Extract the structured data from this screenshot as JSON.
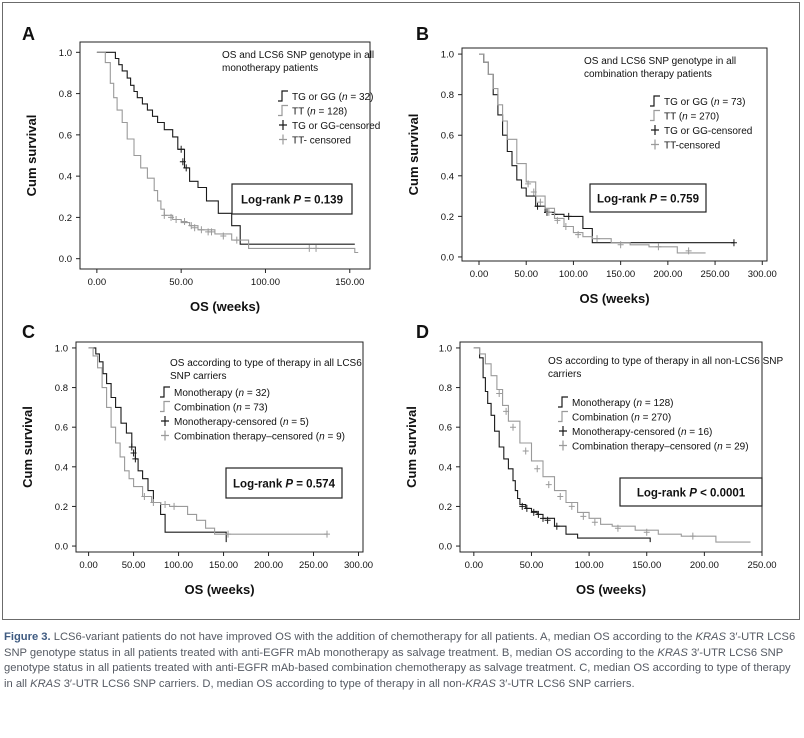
{
  "figure": {
    "axis_xlabel": "OS (weeks)",
    "axis_ylabel": "Cum survival",
    "caption": {
      "label": "Figure 3.",
      "text_html": "LCS6-variant patients do not have improved OS with the addition of chemotherapy for all patients. A, median OS according to the <i>KRAS</i> 3′-UTR LCS6 SNP genotype status in all patients treated with anti-EGFR mAb monotherapy as salvage treatment. B, median OS according to the <i>KRAS</i> 3′-UTR LCS6 SNP genotype status in all patients treated with anti-EGFR mAb-based combination chemotherapy as salvage treatment. C, median OS according to type of therapy in all <i>KRAS</i> 3′-UTR LCS6 SNP carriers. D, median OS according to type of therapy in all non-<i>KRAS</i> 3′-UTR LCS6 SNP carriers."
    }
  },
  "colors": {
    "series_dark": "#1a1a1a",
    "series_light": "#9a9a9a",
    "text": "#111111",
    "caption": "#555a63"
  },
  "chart_data": [
    {
      "panel": "A",
      "type": "line",
      "subtype": "kaplan-meier",
      "title": "OS and LCS6 SNP genotype in all monotherapy patients",
      "xlabel": "OS (weeks)",
      "ylabel": "Cum survival",
      "xlim": [
        -10,
        162
      ],
      "ylim": [
        -0.05,
        1.05
      ],
      "xticks": [
        0,
        50,
        100,
        150
      ],
      "xtick_labels": [
        "0.00",
        "50.00",
        "100.00",
        "150.00"
      ],
      "yticks": [
        0,
        0.2,
        0.4,
        0.6,
        0.8,
        1.0
      ],
      "ytick_labels": [
        "0.0",
        "0.2",
        "0.4",
        "0.6",
        "0.8",
        "1.0"
      ],
      "annotation": "Log-rank P = 0.139",
      "legend": {
        "position": "top-right",
        "entries": [
          "TG or GG (n = 32)",
          "TT (n = 128)",
          "TG or GG-censored",
          "TT- censored"
        ]
      },
      "series": [
        {
          "name": "TG or GG (n = 32)",
          "style": "dark",
          "x": [
            0,
            8,
            11,
            13,
            15,
            18,
            20,
            22,
            24,
            27,
            30,
            33,
            36,
            40,
            45,
            48,
            52,
            55,
            60,
            65,
            72,
            80,
            85,
            153
          ],
          "y": [
            1.0,
            1.0,
            0.97,
            0.94,
            0.91,
            0.875,
            0.84,
            0.81,
            0.78,
            0.75,
            0.72,
            0.69,
            0.66,
            0.625,
            0.59,
            0.53,
            0.44,
            0.375,
            0.345,
            0.28,
            0.22,
            0.16,
            0.07,
            0.07
          ],
          "censored": [
            [
              50,
              0.53
            ],
            [
              51,
              0.47
            ],
            [
              53,
              0.44
            ]
          ]
        },
        {
          "name": "TT (n = 128)",
          "style": "light",
          "x": [
            0,
            5,
            8,
            10,
            12,
            15,
            18,
            22,
            26,
            30,
            34,
            36,
            38,
            40,
            45,
            50,
            55,
            60,
            70,
            80,
            90,
            150,
            153,
            155
          ],
          "y": [
            1.0,
            0.95,
            0.85,
            0.78,
            0.72,
            0.66,
            0.58,
            0.5,
            0.44,
            0.39,
            0.33,
            0.28,
            0.24,
            0.21,
            0.19,
            0.175,
            0.16,
            0.14,
            0.12,
            0.09,
            0.05,
            0.05,
            0.03,
            0.03
          ],
          "censored": [
            [
              40,
              0.21
            ],
            [
              44,
              0.2
            ],
            [
              47,
              0.19
            ],
            [
              52,
              0.18
            ],
            [
              56,
              0.16
            ],
            [
              58,
              0.15
            ],
            [
              62,
              0.14
            ],
            [
              66,
              0.13
            ],
            [
              68,
              0.13
            ],
            [
              75,
              0.11
            ],
            [
              83,
              0.09
            ],
            [
              126,
              0.05
            ],
            [
              130,
              0.05
            ]
          ]
        }
      ]
    },
    {
      "panel": "B",
      "type": "line",
      "subtype": "kaplan-meier",
      "title": "OS and LCS6 SNP genotype in all combination therapy patients",
      "xlabel": "OS (weeks)",
      "ylabel": "Cum survival",
      "xlim": [
        -18,
        305
      ],
      "ylim": [
        -0.02,
        1.03
      ],
      "xticks": [
        0,
        50,
        100,
        150,
        200,
        250,
        300
      ],
      "xtick_labels": [
        "0.00",
        "50.00",
        "100.00",
        "150.00",
        "200.00",
        "250.00",
        "300.00"
      ],
      "yticks": [
        0,
        0.2,
        0.4,
        0.6,
        0.8,
        1.0
      ],
      "ytick_labels": [
        "0.0",
        "0.2",
        "0.4",
        "0.6",
        "0.8",
        "1.0"
      ],
      "annotation": "Log-rank P = 0.759",
      "legend": {
        "position": "top-right",
        "entries": [
          "TG or GG (n = 73)",
          "TT (n = 270)",
          "TG or GG-censored",
          "TT-censored"
        ]
      },
      "series": [
        {
          "name": "TG or GG (n = 73)",
          "style": "dark",
          "x": [
            0,
            5,
            10,
            15,
            20,
            25,
            30,
            35,
            40,
            45,
            50,
            60,
            70,
            80,
            90,
            100,
            110,
            120,
            140,
            165,
            270
          ],
          "y": [
            1.0,
            0.96,
            0.9,
            0.8,
            0.7,
            0.6,
            0.52,
            0.45,
            0.38,
            0.34,
            0.3,
            0.25,
            0.22,
            0.21,
            0.2,
            0.2,
            0.14,
            0.07,
            0.07,
            0.07,
            0.07
          ],
          "censored": [
            [
              62,
              0.25
            ],
            [
              72,
              0.22
            ],
            [
              80,
              0.21
            ],
            [
              95,
              0.2
            ],
            [
              270,
              0.07
            ]
          ]
        },
        {
          "name": "TT (n = 270)",
          "style": "light",
          "x": [
            0,
            5,
            10,
            15,
            20,
            25,
            30,
            40,
            50,
            60,
            70,
            80,
            90,
            100,
            110,
            120,
            140,
            160,
            180,
            200,
            210,
            240
          ],
          "y": [
            1.0,
            0.96,
            0.9,
            0.83,
            0.75,
            0.67,
            0.58,
            0.46,
            0.37,
            0.3,
            0.24,
            0.19,
            0.15,
            0.12,
            0.1,
            0.09,
            0.07,
            0.06,
            0.05,
            0.05,
            0.02,
            0.02
          ],
          "censored": [
            [
              52,
              0.36
            ],
            [
              58,
              0.32
            ],
            [
              65,
              0.27
            ],
            [
              74,
              0.22
            ],
            [
              83,
              0.18
            ],
            [
              92,
              0.15
            ],
            [
              105,
              0.11
            ],
            [
              125,
              0.09
            ],
            [
              150,
              0.06
            ],
            [
              190,
              0.05
            ],
            [
              222,
              0.03
            ]
          ]
        }
      ]
    },
    {
      "panel": "C",
      "type": "line",
      "subtype": "kaplan-meier",
      "title": "OS according to type of therapy in all LCS6 SNP carriers",
      "xlabel": "OS (weeks)",
      "ylabel": "Cum survival",
      "xlim": [
        -14,
        305
      ],
      "ylim": [
        -0.03,
        1.03
      ],
      "xticks": [
        0,
        50,
        100,
        150,
        200,
        250,
        300
      ],
      "xtick_labels": [
        "0.00",
        "50.00",
        "100.00",
        "150.00",
        "200.00",
        "250.00",
        "300.00"
      ],
      "yticks": [
        0,
        0.2,
        0.4,
        0.6,
        0.8,
        1.0
      ],
      "ytick_labels": [
        "0.0",
        "0.2",
        "0.4",
        "0.6",
        "0.8",
        "1.0"
      ],
      "annotation": "Log-rank P = 0.574",
      "legend": {
        "position": "top-right",
        "entries": [
          "Monotherapy (n = 32)",
          "Combination (n = 73)",
          "Monotherapy-censored (n = 5)",
          "Combination therapy–censored (n = 9)"
        ]
      },
      "series": [
        {
          "name": "Monotherapy (n = 32)",
          "style": "dark",
          "x": [
            0,
            8,
            12,
            16,
            20,
            25,
            30,
            36,
            42,
            48,
            52,
            55,
            60,
            66,
            72,
            80,
            85,
            150,
            153
          ],
          "y": [
            1.0,
            0.97,
            0.93,
            0.87,
            0.82,
            0.75,
            0.7,
            0.62,
            0.57,
            0.5,
            0.44,
            0.38,
            0.34,
            0.28,
            0.22,
            0.16,
            0.07,
            0.07,
            0.02
          ],
          "censored": [
            [
              48,
              0.5
            ],
            [
              50,
              0.47
            ],
            [
              52,
              0.44
            ]
          ]
        },
        {
          "name": "Combination (n = 73)",
          "style": "light",
          "x": [
            0,
            5,
            10,
            15,
            20,
            25,
            30,
            35,
            40,
            45,
            50,
            60,
            70,
            80,
            90,
            100,
            110,
            120,
            130,
            140,
            160,
            265
          ],
          "y": [
            1.0,
            0.96,
            0.9,
            0.8,
            0.7,
            0.6,
            0.52,
            0.45,
            0.38,
            0.34,
            0.3,
            0.25,
            0.22,
            0.21,
            0.2,
            0.2,
            0.16,
            0.13,
            0.09,
            0.06,
            0.06,
            0.06
          ],
          "censored": [
            [
              62,
              0.25
            ],
            [
              72,
              0.22
            ],
            [
              85,
              0.21
            ],
            [
              95,
              0.2
            ],
            [
              155,
              0.06
            ],
            [
              265,
              0.06
            ]
          ]
        }
      ]
    },
    {
      "panel": "D",
      "type": "line",
      "subtype": "kaplan-meier",
      "title": "OS according to type of therapy in all non-LCS6 SNP carriers",
      "xlabel": "OS (weeks)",
      "ylabel": "Cum survival",
      "xlim": [
        -12,
        250
      ],
      "ylim": [
        -0.03,
        1.03
      ],
      "xticks": [
        0,
        50,
        100,
        150,
        200,
        250
      ],
      "xtick_labels": [
        "0.00",
        "50.00",
        "100.00",
        "150.00",
        "200.00",
        "250.00"
      ],
      "yticks": [
        0,
        0.2,
        0.4,
        0.6,
        0.8,
        1.0
      ],
      "ytick_labels": [
        "0.0",
        "0.2",
        "0.4",
        "0.6",
        "0.8",
        "1.0"
      ],
      "annotation": "Log-rank P < 0.0001",
      "legend": {
        "position": "top-right",
        "entries": [
          "Monotherapy (n = 128)",
          "Combination (n = 270)",
          "Monotherapy-censored (n = 16)",
          "Combination therapy–censored (n = 29)"
        ]
      },
      "series": [
        {
          "name": "Monotherapy (n = 128)",
          "style": "dark",
          "x": [
            0,
            5,
            8,
            10,
            12,
            15,
            18,
            22,
            26,
            30,
            34,
            36,
            38,
            40,
            45,
            50,
            55,
            60,
            70,
            80,
            90,
            150,
            153
          ],
          "y": [
            1.0,
            0.95,
            0.85,
            0.78,
            0.72,
            0.66,
            0.58,
            0.5,
            0.44,
            0.39,
            0.33,
            0.28,
            0.24,
            0.21,
            0.19,
            0.175,
            0.16,
            0.14,
            0.1,
            0.06,
            0.04,
            0.04,
            0.02
          ],
          "censored": [
            [
              42,
              0.2
            ],
            [
              46,
              0.19
            ],
            [
              52,
              0.17
            ],
            [
              56,
              0.16
            ],
            [
              60,
              0.14
            ],
            [
              64,
              0.13
            ],
            [
              72,
              0.1
            ]
          ]
        },
        {
          "name": "Combination (n = 270)",
          "style": "light",
          "x": [
            0,
            5,
            10,
            15,
            20,
            25,
            30,
            40,
            50,
            60,
            70,
            80,
            90,
            100,
            110,
            120,
            140,
            160,
            180,
            200,
            210,
            240
          ],
          "y": [
            1.0,
            0.97,
            0.92,
            0.86,
            0.79,
            0.71,
            0.63,
            0.52,
            0.43,
            0.35,
            0.28,
            0.22,
            0.17,
            0.14,
            0.11,
            0.1,
            0.08,
            0.06,
            0.05,
            0.05,
            0.02,
            0.02
          ],
          "censored": [
            [
              22,
              0.77
            ],
            [
              28,
              0.68
            ],
            [
              34,
              0.6
            ],
            [
              45,
              0.48
            ],
            [
              55,
              0.39
            ],
            [
              65,
              0.31
            ],
            [
              75,
              0.25
            ],
            [
              85,
              0.2
            ],
            [
              95,
              0.15
            ],
            [
              105,
              0.12
            ],
            [
              125,
              0.09
            ],
            [
              150,
              0.07
            ],
            [
              190,
              0.05
            ]
          ]
        }
      ]
    }
  ]
}
